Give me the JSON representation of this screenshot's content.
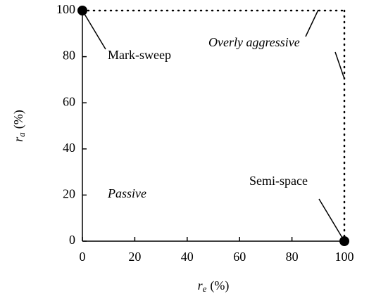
{
  "chart_data": {
    "type": "scatter",
    "x": [
      0,
      100
    ],
    "series": [
      {
        "color": "#000000",
        "values": [
          100,
          0
        ],
        "point_labels": [
          "Mark-sweep",
          "Semi-space"
        ]
      }
    ],
    "annotations": [
      "Overly aggressive",
      "Passive"
    ],
    "xlabel": {
      "symbol": "r",
      "subscript": "e",
      "unit": "(%)"
    },
    "ylabel": {
      "symbol": "r",
      "subscript": "a",
      "unit": "(%)"
    },
    "xlim": [
      0,
      100
    ],
    "ylim": [
      0,
      100
    ],
    "xticks": [
      0,
      20,
      40,
      60,
      80,
      100
    ],
    "yticks": [
      0,
      20,
      40,
      60,
      80,
      100
    ],
    "grid": false
  }
}
